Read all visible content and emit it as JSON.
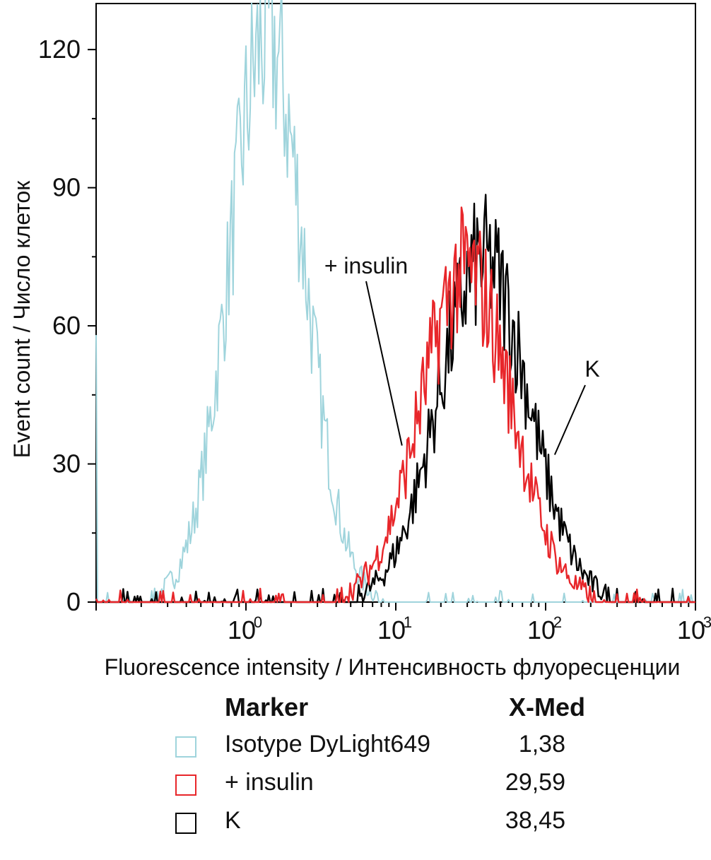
{
  "chart_data": {
    "type": "histogram",
    "xscale": "log",
    "xlim": [
      0.1,
      1000
    ],
    "ylim": [
      0,
      130
    ],
    "xlabel": "Fluorescence intensity / Интенсивность флуоресценции",
    "ylabel": "Event count / Число клеток",
    "yticks": [
      "0",
      "30",
      "60",
      "90",
      "120"
    ],
    "ytick_values": [
      0,
      30,
      60,
      90,
      120
    ],
    "xticks": [
      {
        "base": "10",
        "exp": "0",
        "value": 1
      },
      {
        "base": "10",
        "exp": "1",
        "value": 10
      },
      {
        "base": "10",
        "exp": "2",
        "value": 100
      },
      {
        "base": "10",
        "exp": "3",
        "value": 1000
      }
    ],
    "series": [
      {
        "name": "Isotype DyLight649",
        "color": "#9fd4dc",
        "xmed": 1.38,
        "peak": 123,
        "log_sigma": 0.25
      },
      {
        "name": "+ insulin",
        "color": "#e8262a",
        "xmed": 29.59,
        "peak": 72,
        "log_sigma": 0.3
      },
      {
        "name": "K",
        "color": "#000000",
        "xmed": 38.45,
        "peak": 74,
        "log_sigma": 0.3
      }
    ],
    "annotations": [
      {
        "text": "+ insulin",
        "series": "+ insulin",
        "point_x": 11,
        "point_y": 34
      },
      {
        "text": "K",
        "series": "K",
        "point_x": 115,
        "point_y": 32
      }
    ]
  },
  "legend": {
    "header_marker": "Marker",
    "header_value": "X-Med",
    "rows": [
      {
        "name": "Isotype DyLight649",
        "value": "1,38",
        "color": "#9fd4dc"
      },
      {
        "name": "+ insulin",
        "value": "29,59",
        "color": "#e8262a"
      },
      {
        "name": "K",
        "value": "38,45",
        "color": "#000000"
      }
    ]
  }
}
